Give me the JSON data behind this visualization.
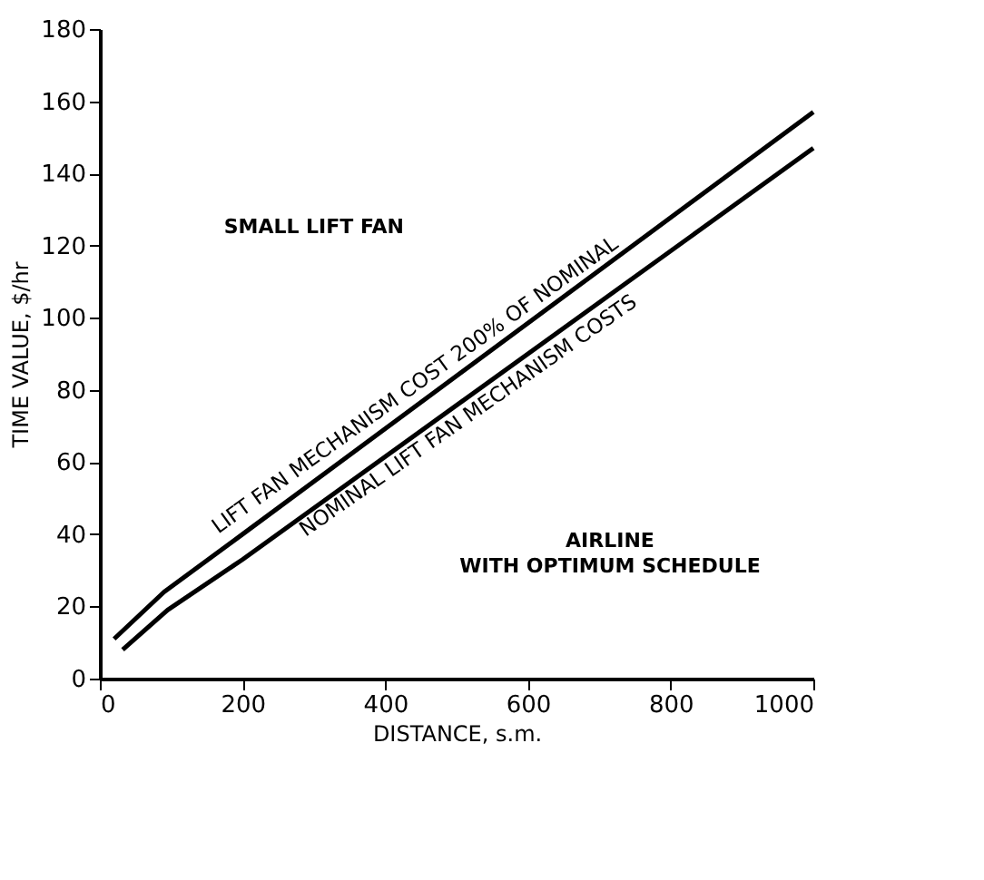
{
  "chart_data": {
    "type": "line",
    "xlabel": "DISTANCE, s.m.",
    "ylabel": "TIME VALUE, $/hr",
    "xlim": [
      0,
      1000
    ],
    "xticks": [
      0,
      200,
      400,
      600,
      800,
      {
        "value": 1000,
        "label": "1000"
      }
    ],
    "ylim": [
      0,
      180
    ],
    "yticks": [
      0,
      20,
      40,
      60,
      80,
      100,
      120,
      140,
      160,
      180
    ],
    "grid": false,
    "marker": "none",
    "line_style": "solid",
    "series": [
      {
        "name": "LIFT FAN MECHANISM COST 200% OF NOMINAL",
        "color": "#000000",
        "x": [
          20,
          90,
          200,
          1000
        ],
        "values": [
          11,
          24,
          40,
          157
        ]
      },
      {
        "name": "NOMINAL LIFT FAN MECHANISM COSTS",
        "color": "#000000",
        "x": [
          32,
          95,
          200,
          1000
        ],
        "values": [
          8,
          19,
          33,
          147
        ]
      }
    ],
    "annotations": [
      {
        "text": "SMALL LIFT FAN"
      },
      {
        "text": "AIRLINE"
      },
      {
        "text": "WITH OPTIMUM SCHEDULE"
      }
    ]
  }
}
